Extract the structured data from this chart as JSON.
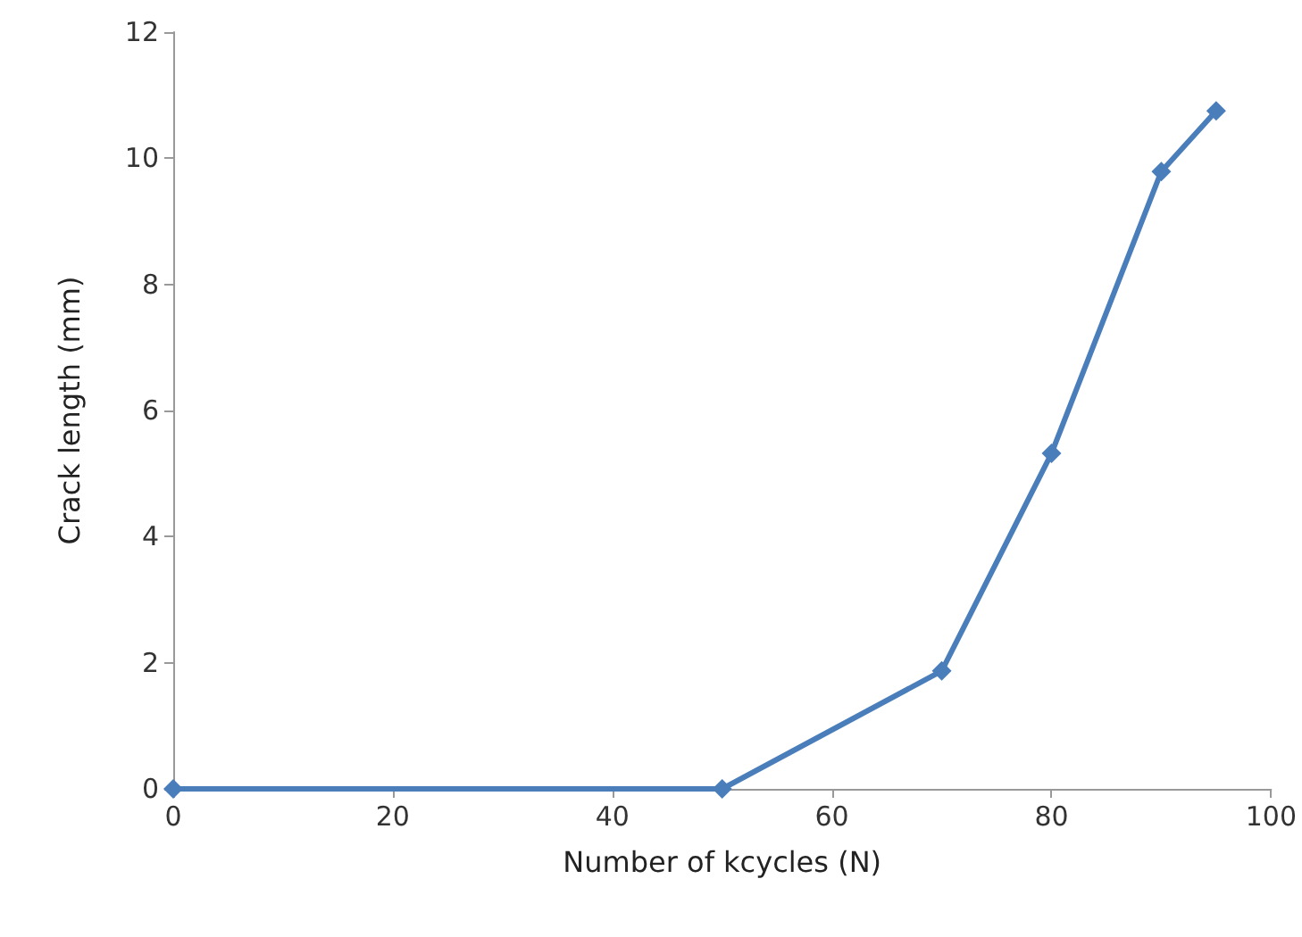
{
  "chart_data": {
    "type": "line",
    "xlabel": "Number of kcycles (N)",
    "ylabel": "Crack length (mm)",
    "x": [
      0,
      50,
      70,
      80,
      90,
      95
    ],
    "series": [
      {
        "color": "#4a7ebb",
        "values": [
          0,
          0,
          1.87,
          5.32,
          9.79,
          10.75
        ]
      }
    ],
    "xlim": [
      0,
      100
    ],
    "xticks": [
      0,
      20,
      40,
      60,
      80,
      100
    ],
    "ylim": [
      0,
      12
    ],
    "yticks": [
      0,
      2,
      4,
      6,
      8,
      10,
      12
    ],
    "marker": "diamond",
    "line_style": "solid"
  }
}
